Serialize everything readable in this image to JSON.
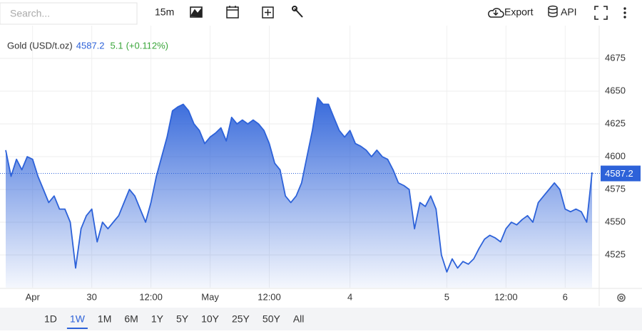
{
  "toolbar": {
    "search_placeholder": "Search...",
    "interval": "15m",
    "export": "Export",
    "api": "API"
  },
  "chart_data": {
    "type": "area",
    "series": [
      {
        "name": "Gold (USD/t.oz)",
        "color": "#2d62d9",
        "values": [
          4605,
          4585,
          4598,
          4590,
          4600,
          4598,
          4585,
          4575,
          4565,
          4570,
          4560,
          4560,
          4550,
          4515,
          4545,
          4555,
          4560,
          4535,
          4550,
          4545,
          4550,
          4555,
          4565,
          4575,
          4570,
          4560,
          4550,
          4565,
          4585,
          4600,
          4615,
          4635,
          4638,
          4640,
          4635,
          4625,
          4620,
          4610,
          4615,
          4618,
          4622,
          4612,
          4630,
          4625,
          4628,
          4625,
          4628,
          4625,
          4620,
          4610,
          4595,
          4590,
          4570,
          4565,
          4570,
          4580,
          4600,
          4620,
          4645,
          4640,
          4640,
          4630,
          4620,
          4615,
          4620,
          4610,
          4608,
          4605,
          4600,
          4605,
          4600,
          4598,
          4590,
          4580,
          4578,
          4575,
          4545,
          4565,
          4562,
          4570,
          4560,
          4525,
          4512,
          4522,
          4515,
          4520,
          4518,
          4522,
          4530,
          4537,
          4540,
          4538,
          4535,
          4545,
          4550,
          4548,
          4552,
          4555,
          4550,
          4565,
          4570,
          4575,
          4580,
          4575,
          4560,
          4558,
          4560,
          4558,
          4550,
          4588
        ]
      }
    ],
    "categories": [
      null,
      null,
      null,
      null,
      null,
      "Apr",
      null,
      null,
      null,
      null,
      null,
      null,
      null,
      null,
      null,
      null,
      "30",
      null,
      null,
      null,
      null,
      null,
      null,
      null,
      null,
      null,
      null,
      "12:00",
      null,
      null,
      null,
      null,
      null,
      null,
      null,
      null,
      null,
      null,
      "May",
      null,
      null,
      null,
      null,
      null,
      null,
      null,
      null,
      null,
      null,
      "12:00",
      null,
      null,
      null,
      null,
      null,
      null,
      null,
      null,
      null,
      null,
      null,
      null,
      null,
      null,
      "4",
      null,
      null,
      null,
      null,
      null,
      null,
      null,
      null,
      null,
      null,
      null,
      null,
      null,
      null,
      null,
      null,
      null,
      "5",
      null,
      null,
      null,
      null,
      null,
      null,
      null,
      null,
      null,
      null,
      "12:00",
      null,
      null,
      null,
      null,
      null,
      null,
      null,
      null,
      null,
      null,
      "6",
      null,
      null,
      null,
      null,
      null
    ],
    "last_price": 4587.2,
    "change": 5.1,
    "change_percent": "(+0.112%)",
    "ylim": [
      4500,
      4700
    ],
    "yticks": [
      4525,
      4550,
      4575,
      4600,
      4625,
      4650,
      4675
    ],
    "grid": true
  },
  "ranges": {
    "items": [
      "1D",
      "1W",
      "1M",
      "6M",
      "1Y",
      "5Y",
      "10Y",
      "25Y",
      "50Y",
      "All"
    ],
    "active_index": 1
  }
}
